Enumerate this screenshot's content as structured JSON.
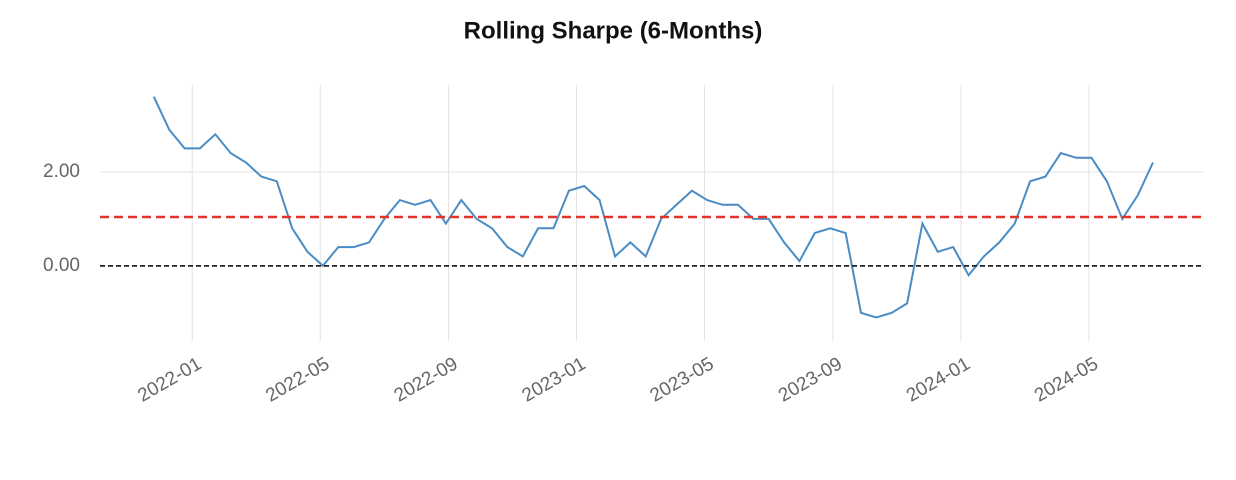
{
  "chart_data": {
    "type": "line",
    "title": "Rolling Sharpe (6-Months)",
    "x": [
      2021.9,
      2021.94,
      2021.98,
      2022.02,
      2022.06,
      2022.1,
      2022.14,
      2022.18,
      2022.22,
      2022.26,
      2022.3,
      2022.34,
      2022.38,
      2022.42,
      2022.46,
      2022.5,
      2022.54,
      2022.58,
      2022.62,
      2022.66,
      2022.7,
      2022.74,
      2022.78,
      2022.82,
      2022.86,
      2022.9,
      2022.94,
      2022.98,
      2023.02,
      2023.06,
      2023.1,
      2023.14,
      2023.18,
      2023.22,
      2023.26,
      2023.3,
      2023.34,
      2023.38,
      2023.42,
      2023.46,
      2023.5,
      2023.54,
      2023.58,
      2023.62,
      2023.66,
      2023.7,
      2023.74,
      2023.78,
      2023.82,
      2023.86,
      2023.9,
      2023.94,
      2023.98,
      2024.02,
      2024.06,
      2024.1,
      2024.14,
      2024.18,
      2024.22,
      2024.26,
      2024.3,
      2024.34,
      2024.38,
      2024.42,
      2024.46,
      2024.5
    ],
    "series": [
      {
        "color": "#4a8cc4",
        "values": [
          3.6,
          2.9,
          2.5,
          2.5,
          2.8,
          2.4,
          2.2,
          1.9,
          1.8,
          0.8,
          0.3,
          0.0,
          0.4,
          0.4,
          0.5,
          1.0,
          1.4,
          1.3,
          1.4,
          0.9,
          1.4,
          1.0,
          0.8,
          0.4,
          0.2,
          0.8,
          0.8,
          1.6,
          1.7,
          1.4,
          0.2,
          0.5,
          0.2,
          1.0,
          1.3,
          1.6,
          1.4,
          1.3,
          1.3,
          1.0,
          1.0,
          0.5,
          0.1,
          0.7,
          0.8,
          0.7,
          -1.0,
          -1.1,
          -1.0,
          -0.8,
          0.9,
          0.3,
          0.4,
          -0.2,
          0.2,
          0.5,
          0.9,
          1.8,
          1.9,
          2.4,
          2.3,
          2.3,
          1.8,
          1.0,
          1.5,
          2.2
        ]
      }
    ],
    "reference_lines": [
      {
        "value": 1.04,
        "color": "#e0362a"
      },
      {
        "value": 0,
        "color": "#222222"
      }
    ],
    "xlim": [
      2021.76,
      2024.63
    ],
    "xticks": [
      {
        "value": 2022.0,
        "label": "2022-01"
      },
      {
        "value": 2022.333,
        "label": "2022-05"
      },
      {
        "value": 2022.667,
        "label": "2022-09"
      },
      {
        "value": 2023.0,
        "label": "2023-01"
      },
      {
        "value": 2023.333,
        "label": "2023-05"
      },
      {
        "value": 2023.667,
        "label": "2023-09"
      },
      {
        "value": 2024.0,
        "label": "2024-01"
      },
      {
        "value": 2024.333,
        "label": "2024-05"
      }
    ],
    "ylim": [
      -1.6,
      3.85
    ],
    "yticks": [
      {
        "value": 0,
        "label": "0.00"
      },
      {
        "value": 2,
        "label": "2.00"
      }
    ],
    "grid": true
  }
}
